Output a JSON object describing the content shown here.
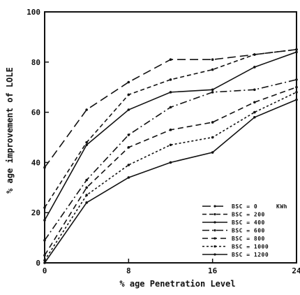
{
  "chart_data": {
    "type": "line",
    "title": "",
    "xlabel": "% age Penetration Level",
    "ylabel": "% age improvement of LOLE",
    "xlim": [
      0,
      24
    ],
    "ylim": [
      0,
      100
    ],
    "xticks": [
      0,
      8,
      16,
      24
    ],
    "yticks": [
      0,
      20,
      40,
      60,
      80,
      100
    ],
    "grid": false,
    "legend_position": "bottom-right",
    "legend_unit": "KWh",
    "x": [
      0,
      4,
      8,
      12,
      16,
      20,
      24
    ],
    "series": [
      {
        "name": "BSC = 0",
        "values": [
          38,
          61,
          72,
          81,
          81,
          83,
          85
        ]
      },
      {
        "name": "BSC = 200",
        "values": [
          22,
          48,
          67,
          73,
          77,
          83,
          85
        ]
      },
      {
        "name": "BSC = 400",
        "values": [
          17,
          47,
          61,
          68,
          69,
          78,
          84
        ]
      },
      {
        "name": "BSC = 600",
        "values": [
          9,
          33,
          51,
          62,
          68,
          69,
          73
        ]
      },
      {
        "name": "BSC = 800",
        "values": [
          3,
          30,
          46,
          53,
          56,
          64,
          70
        ]
      },
      {
        "name": "BSC = 1000",
        "values": [
          1,
          27,
          39,
          47,
          50,
          60,
          68
        ]
      },
      {
        "name": "BSC = 1200",
        "values": [
          0,
          24,
          34,
          40,
          44,
          58,
          65
        ]
      }
    ],
    "series_styles": [
      {
        "color": "#111111",
        "dash": "12,6"
      },
      {
        "color": "#111111",
        "dash": "6,4"
      },
      {
        "color": "#111111",
        "dash": ""
      },
      {
        "color": "#111111",
        "dash": "10,4,2,4"
      },
      {
        "color": "#111111",
        "dash": "8,5"
      },
      {
        "color": "#111111",
        "dash": "3,3"
      },
      {
        "color": "#111111",
        "dash": ""
      }
    ]
  }
}
